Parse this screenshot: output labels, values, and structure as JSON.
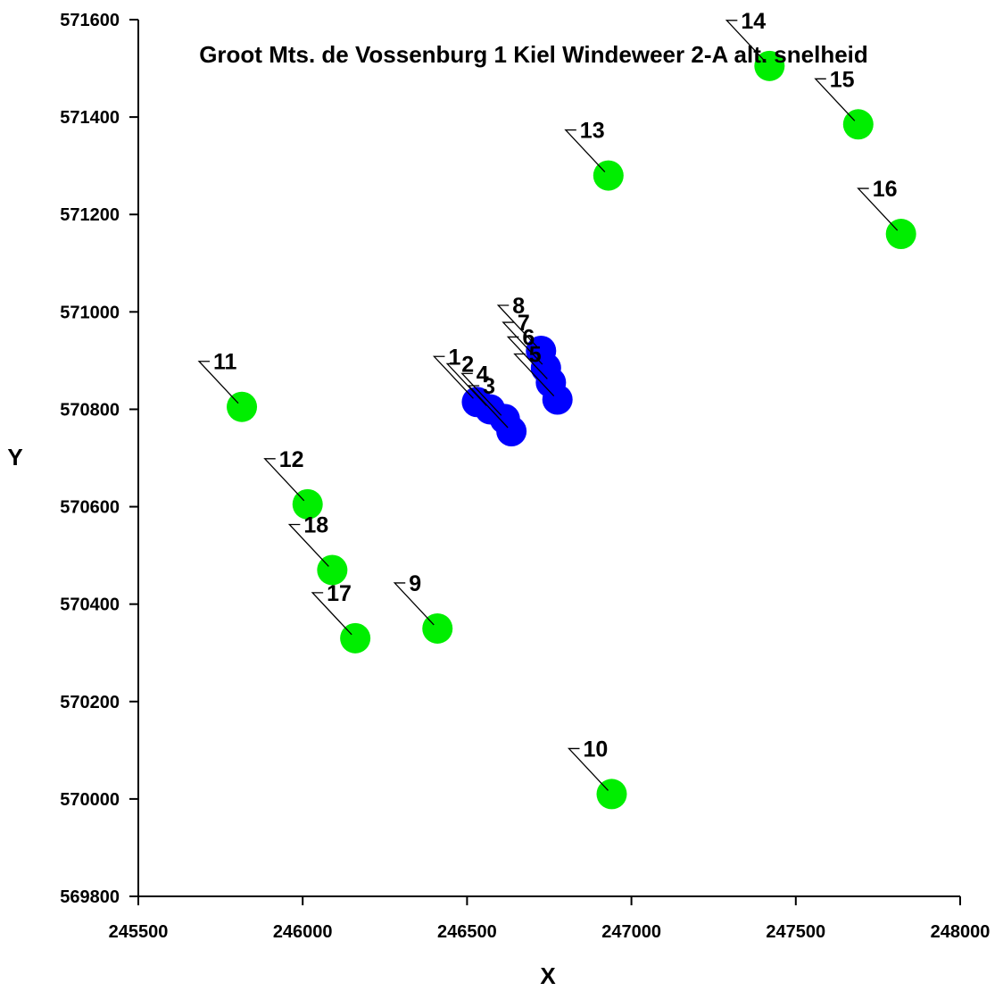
{
  "chart_data": {
    "type": "scatter",
    "title": "Groot Mts. de Vossenburg 1 Kiel Windeweer 2-A alt. snelheid",
    "xlabel": "X",
    "ylabel": "Y",
    "xlim": [
      245500,
      248000
    ],
    "ylim": [
      569800,
      571600
    ],
    "xticks": [
      245500,
      246000,
      246500,
      247000,
      247500,
      248000
    ],
    "yticks": [
      569800,
      570000,
      570200,
      570400,
      570600,
      570800,
      571000,
      571200,
      571400,
      571600
    ],
    "grid": false,
    "legend": "none",
    "series": [
      {
        "color": "#0000ff",
        "points": [
          {
            "label": "1",
            "x": 246530,
            "y": 570815
          },
          {
            "label": "2",
            "x": 246570,
            "y": 570800
          },
          {
            "label": "3",
            "x": 246635,
            "y": 570755
          },
          {
            "label": "4",
            "x": 246615,
            "y": 570780
          },
          {
            "label": "5",
            "x": 246775,
            "y": 570820
          },
          {
            "label": "6",
            "x": 246755,
            "y": 570855
          },
          {
            "label": "7",
            "x": 246740,
            "y": 570885
          },
          {
            "label": "8",
            "x": 246725,
            "y": 570920
          }
        ]
      },
      {
        "color": "#00ee00",
        "points": [
          {
            "label": "9",
            "x": 246410,
            "y": 570350
          },
          {
            "label": "10",
            "x": 246940,
            "y": 570010
          },
          {
            "label": "11",
            "x": 245815,
            "y": 570805
          },
          {
            "label": "12",
            "x": 246015,
            "y": 570605
          },
          {
            "label": "13",
            "x": 246930,
            "y": 571280
          },
          {
            "label": "14",
            "x": 247420,
            "y": 571505
          },
          {
            "label": "15",
            "x": 247690,
            "y": 571385
          },
          {
            "label": "16",
            "x": 247820,
            "y": 571160
          },
          {
            "label": "17",
            "x": 246160,
            "y": 570330
          },
          {
            "label": "18",
            "x": 246090,
            "y": 570470
          }
        ]
      }
    ]
  }
}
